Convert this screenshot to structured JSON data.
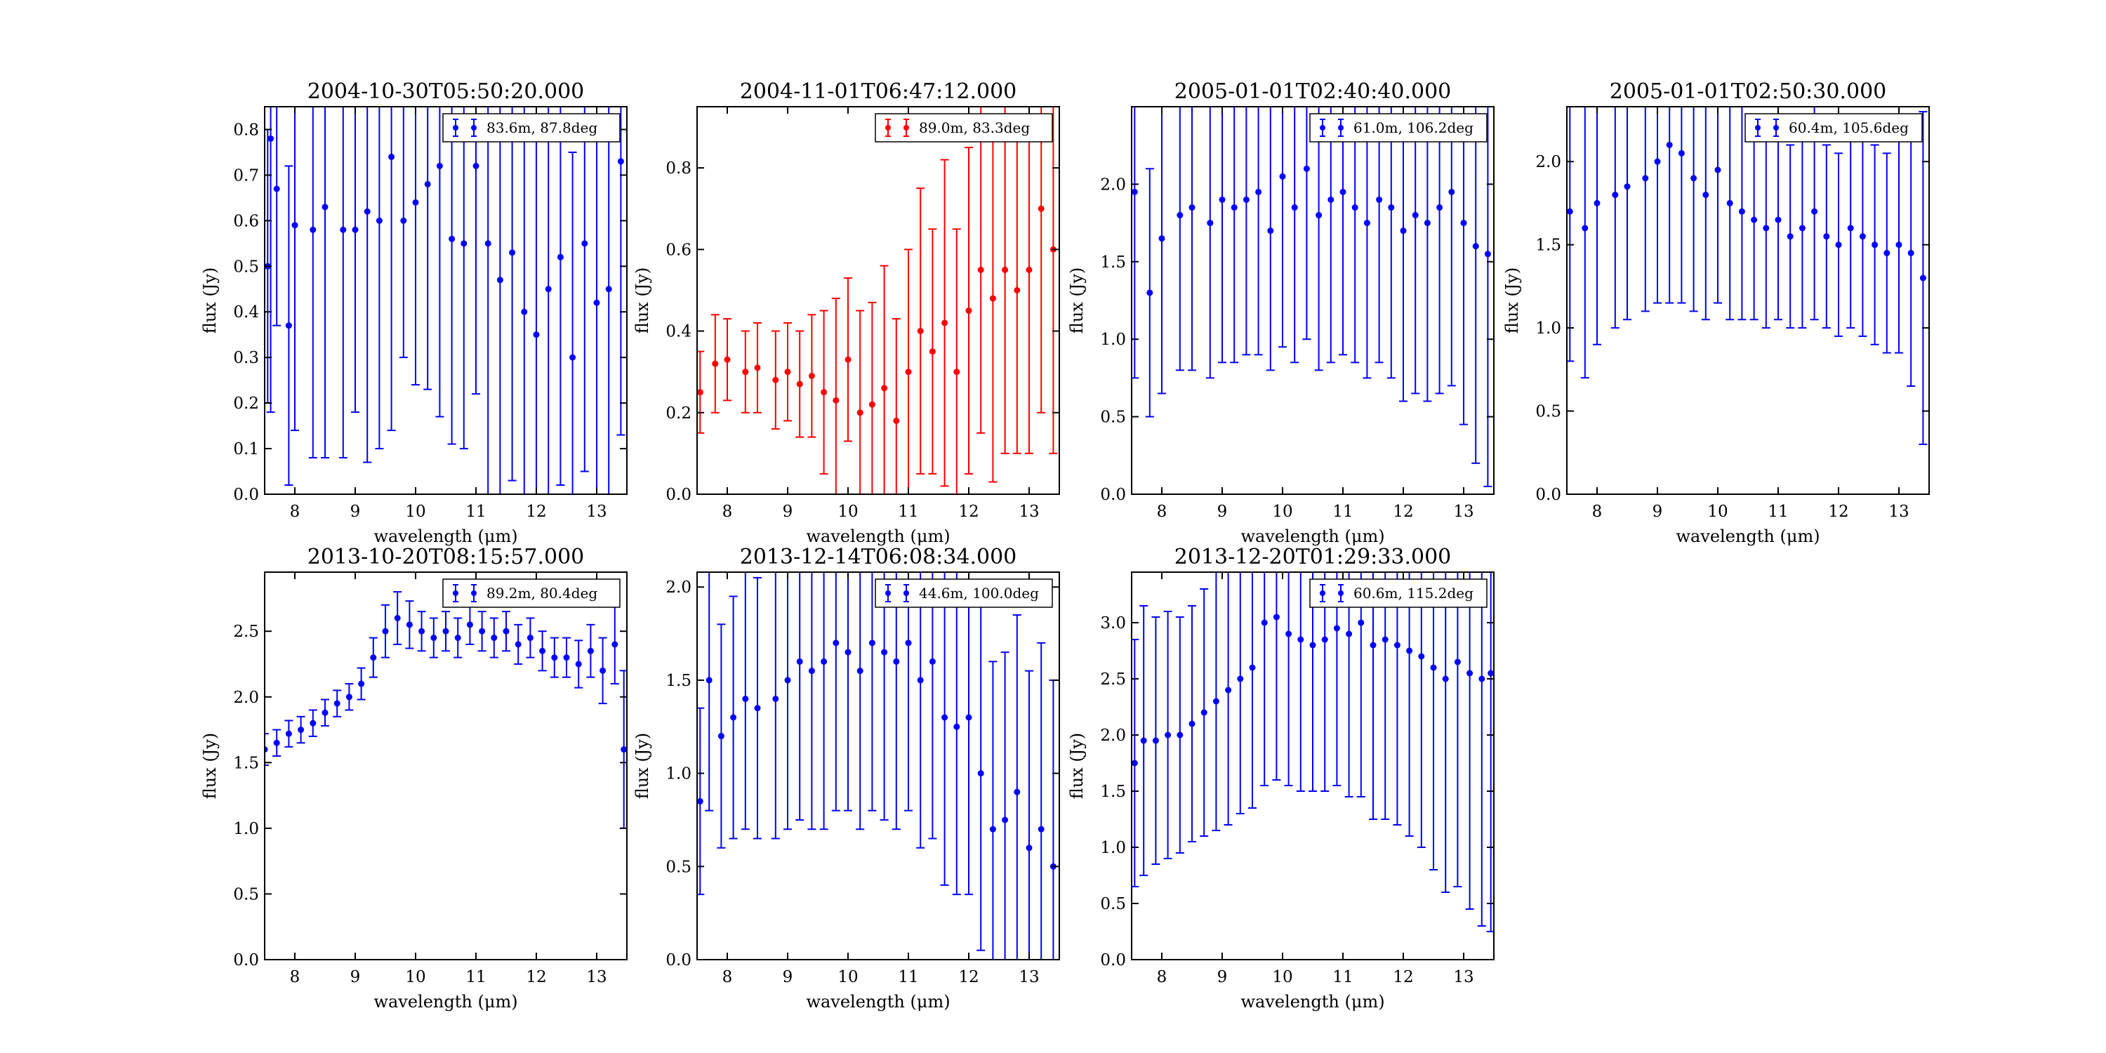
{
  "figure": {
    "background": "#ffffff",
    "colors": {
      "blue": "#0000ff",
      "red": "#ff0000",
      "axes": "#000000"
    }
  },
  "chart_data": [
    {
      "type": "scatter",
      "title": "2004-10-30T05:50:20.000",
      "xlabel": "wavelength (μm)",
      "ylabel": "flux (Jy)",
      "xlim": [
        7.5,
        13.5
      ],
      "ylim": [
        0.0,
        0.85
      ],
      "xticks": [
        "8",
        "9",
        "10",
        "11",
        "12",
        "13"
      ],
      "yticks": [
        "0.0",
        "0.1",
        "0.2",
        "0.3",
        "0.4",
        "0.5",
        "0.6",
        "0.7",
        "0.8"
      ],
      "ytick_values": [
        0,
        0.1,
        0.2,
        0.3,
        0.4,
        0.5,
        0.6,
        0.7,
        0.8
      ],
      "color": "#0000ff",
      "legend": "83.6m, 87.8deg",
      "legend_position": "upper right",
      "x": [
        7.55,
        7.6,
        7.7,
        7.9,
        8.0,
        8.3,
        8.5,
        8.8,
        9.0,
        9.2,
        9.4,
        9.6,
        9.8,
        10.0,
        10.2,
        10.4,
        10.6,
        10.8,
        11.0,
        11.2,
        11.4,
        11.6,
        11.8,
        12.0,
        12.2,
        12.4,
        12.6,
        12.8,
        13.0,
        13.2,
        13.4
      ],
      "y": [
        0.5,
        0.78,
        0.67,
        0.37,
        0.59,
        0.58,
        0.63,
        0.58,
        0.58,
        0.62,
        0.6,
        0.74,
        0.6,
        0.64,
        0.68,
        0.72,
        0.56,
        0.55,
        0.72,
        0.55,
        0.47,
        0.53,
        0.4,
        0.35,
        0.45,
        0.52,
        0.3,
        0.55,
        0.42,
        0.45,
        0.73
      ],
      "yerr": [
        0.3,
        0.6,
        0.3,
        0.35,
        0.45,
        0.5,
        0.55,
        0.5,
        0.4,
        0.55,
        0.5,
        0.6,
        0.3,
        0.4,
        0.45,
        0.55,
        0.45,
        0.45,
        0.5,
        0.55,
        0.5,
        0.5,
        0.55,
        0.5,
        0.5,
        0.5,
        0.45,
        0.5,
        0.45,
        0.5,
        0.6
      ]
    },
    {
      "type": "scatter",
      "title": "2004-11-01T06:47:12.000",
      "xlabel": "wavelength (μm)",
      "ylabel": "flux (Jy)",
      "xlim": [
        7.5,
        13.5
      ],
      "ylim": [
        0.0,
        0.95
      ],
      "xticks": [
        "8",
        "9",
        "10",
        "11",
        "12",
        "13"
      ],
      "yticks": [
        "0.0",
        "0.2",
        "0.4",
        "0.6",
        "0.8"
      ],
      "ytick_values": [
        0,
        0.2,
        0.4,
        0.6,
        0.8
      ],
      "color": "#ff0000",
      "legend": "89.0m, 83.3deg",
      "legend_position": "upper right",
      "x": [
        7.55,
        7.8,
        8.0,
        8.3,
        8.5,
        8.8,
        9.0,
        9.2,
        9.4,
        9.6,
        9.8,
        10.0,
        10.2,
        10.4,
        10.6,
        10.8,
        11.0,
        11.2,
        11.4,
        11.6,
        11.8,
        12.0,
        12.2,
        12.4,
        12.6,
        12.8,
        13.0,
        13.2,
        13.4
      ],
      "y": [
        0.25,
        0.32,
        0.33,
        0.3,
        0.31,
        0.28,
        0.3,
        0.27,
        0.29,
        0.25,
        0.23,
        0.33,
        0.2,
        0.22,
        0.26,
        0.18,
        0.3,
        0.4,
        0.35,
        0.42,
        0.3,
        0.45,
        0.55,
        0.48,
        0.55,
        0.5,
        0.55,
        0.7,
        0.6
      ],
      "yerr": [
        0.1,
        0.12,
        0.1,
        0.1,
        0.11,
        0.12,
        0.12,
        0.13,
        0.15,
        0.2,
        0.25,
        0.2,
        0.25,
        0.25,
        0.3,
        0.25,
        0.3,
        0.35,
        0.3,
        0.4,
        0.35,
        0.4,
        0.4,
        0.45,
        0.45,
        0.4,
        0.45,
        0.5,
        0.5
      ]
    },
    {
      "type": "scatter",
      "title": "2005-01-01T02:40:40.000",
      "xlabel": "wavelength (μm)",
      "ylabel": "flux (Jy)",
      "xlim": [
        7.5,
        13.5
      ],
      "ylim": [
        0.0,
        2.5
      ],
      "xticks": [
        "8",
        "9",
        "10",
        "11",
        "12",
        "13"
      ],
      "yticks": [
        "0.0",
        "0.5",
        "1.0",
        "1.5",
        "2.0"
      ],
      "ytick_values": [
        0,
        0.5,
        1.0,
        1.5,
        2.0
      ],
      "color": "#0000ff",
      "legend": "61.0m, 106.2deg",
      "legend_position": "upper right",
      "x": [
        7.55,
        7.8,
        8.0,
        8.3,
        8.5,
        8.8,
        9.0,
        9.2,
        9.4,
        9.6,
        9.8,
        10.0,
        10.2,
        10.4,
        10.6,
        10.8,
        11.0,
        11.2,
        11.4,
        11.6,
        11.8,
        12.0,
        12.2,
        12.4,
        12.6,
        12.8,
        13.0,
        13.2,
        13.4
      ],
      "y": [
        1.95,
        1.3,
        1.65,
        1.8,
        1.85,
        1.75,
        1.9,
        1.85,
        1.9,
        1.95,
        1.7,
        2.05,
        1.85,
        2.1,
        1.8,
        1.9,
        1.95,
        1.85,
        1.75,
        1.9,
        1.85,
        1.7,
        1.8,
        1.75,
        1.85,
        1.95,
        1.75,
        1.6,
        1.55
      ],
      "yerr": [
        1.2,
        0.8,
        1.0,
        1.0,
        1.05,
        1.0,
        1.05,
        1.0,
        1.0,
        1.05,
        0.9,
        1.1,
        1.0,
        1.1,
        1.0,
        1.05,
        1.05,
        1.0,
        1.0,
        1.05,
        1.1,
        1.1,
        1.15,
        1.15,
        1.2,
        1.25,
        1.3,
        1.4,
        1.5
      ]
    },
    {
      "type": "scatter",
      "title": "2005-01-01T02:50:30.000",
      "xlabel": "wavelength (μm)",
      "ylabel": "flux (Jy)",
      "xlim": [
        7.5,
        13.5
      ],
      "ylim": [
        0.0,
        2.33
      ],
      "xticks": [
        "8",
        "9",
        "10",
        "11",
        "12",
        "13"
      ],
      "yticks": [
        "0.0",
        "0.5",
        "1.0",
        "1.5",
        "2.0"
      ],
      "ytick_values": [
        0,
        0.5,
        1.0,
        1.5,
        2.0
      ],
      "color": "#0000ff",
      "legend": "60.4m, 105.6deg",
      "legend_position": "upper right",
      "x": [
        7.55,
        7.8,
        8.0,
        8.3,
        8.5,
        8.8,
        9.0,
        9.2,
        9.4,
        9.6,
        9.8,
        10.0,
        10.2,
        10.4,
        10.6,
        10.8,
        11.0,
        11.2,
        11.4,
        11.6,
        11.8,
        12.0,
        12.2,
        12.4,
        12.6,
        12.8,
        13.0,
        13.2,
        13.4
      ],
      "y": [
        1.7,
        1.6,
        1.75,
        1.8,
        1.85,
        1.9,
        2.0,
        2.1,
        2.05,
        1.9,
        1.8,
        1.95,
        1.75,
        1.7,
        1.65,
        1.6,
        1.65,
        1.55,
        1.6,
        1.7,
        1.55,
        1.5,
        1.6,
        1.55,
        1.5,
        1.45,
        1.5,
        1.45,
        1.3
      ],
      "yerr": [
        0.9,
        0.9,
        0.85,
        0.8,
        0.8,
        0.8,
        0.85,
        0.95,
        0.9,
        0.8,
        0.75,
        0.8,
        0.7,
        0.65,
        0.6,
        0.6,
        0.6,
        0.55,
        0.6,
        0.65,
        0.55,
        0.55,
        0.6,
        0.6,
        0.6,
        0.6,
        0.65,
        0.8,
        1.0
      ]
    },
    {
      "type": "scatter",
      "title": "2013-10-20T08:15:57.000",
      "xlabel": "wavelength (μm)",
      "ylabel": "flux (Jy)",
      "xlim": [
        7.5,
        13.5
      ],
      "ylim": [
        0.0,
        2.95
      ],
      "xticks": [
        "8",
        "9",
        "10",
        "11",
        "12",
        "13"
      ],
      "yticks": [
        "0.0",
        "0.5",
        "1.0",
        "1.5",
        "2.0",
        "2.5"
      ],
      "ytick_values": [
        0,
        0.5,
        1.0,
        1.5,
        2.0,
        2.5
      ],
      "color": "#0000ff",
      "legend": "89.2m, 80.4deg",
      "legend_position": "upper right",
      "x": [
        7.5,
        7.7,
        7.9,
        8.1,
        8.3,
        8.5,
        8.7,
        8.9,
        9.1,
        9.3,
        9.5,
        9.7,
        9.9,
        10.1,
        10.3,
        10.5,
        10.7,
        10.9,
        11.1,
        11.3,
        11.5,
        11.7,
        11.9,
        12.1,
        12.3,
        12.5,
        12.7,
        12.9,
        13.1,
        13.3,
        13.45
      ],
      "y": [
        1.6,
        1.65,
        1.72,
        1.75,
        1.8,
        1.88,
        1.95,
        2.0,
        2.1,
        2.3,
        2.5,
        2.6,
        2.55,
        2.5,
        2.45,
        2.5,
        2.45,
        2.55,
        2.5,
        2.45,
        2.5,
        2.4,
        2.45,
        2.35,
        2.3,
        2.3,
        2.25,
        2.35,
        2.2,
        2.4,
        1.6
      ],
      "yerr": [
        0.12,
        0.1,
        0.1,
        0.1,
        0.1,
        0.1,
        0.1,
        0.1,
        0.12,
        0.15,
        0.2,
        0.2,
        0.18,
        0.15,
        0.15,
        0.15,
        0.15,
        0.15,
        0.15,
        0.15,
        0.15,
        0.15,
        0.15,
        0.15,
        0.15,
        0.15,
        0.18,
        0.2,
        0.25,
        0.3,
        0.6
      ]
    },
    {
      "type": "scatter",
      "title": "2013-12-14T06:08:34.000",
      "xlabel": "wavelength (μm)",
      "ylabel": "flux (Jy)",
      "xlim": [
        7.5,
        13.5
      ],
      "ylim": [
        0.0,
        2.08
      ],
      "xticks": [
        "8",
        "9",
        "10",
        "11",
        "12",
        "13"
      ],
      "yticks": [
        "0.0",
        "0.5",
        "1.0",
        "1.5",
        "2.0"
      ],
      "ytick_values": [
        0,
        0.5,
        1.0,
        1.5,
        2.0
      ],
      "color": "#0000ff",
      "legend": "44.6m, 100.0deg",
      "legend_position": "upper right",
      "x": [
        7.55,
        7.7,
        7.9,
        8.1,
        8.3,
        8.5,
        8.8,
        9.0,
        9.2,
        9.4,
        9.6,
        9.8,
        10.0,
        10.2,
        10.4,
        10.6,
        10.8,
        11.0,
        11.2,
        11.4,
        11.6,
        11.8,
        12.0,
        12.2,
        12.4,
        12.6,
        12.8,
        13.0,
        13.2,
        13.4
      ],
      "y": [
        0.85,
        1.5,
        1.2,
        1.3,
        1.4,
        1.35,
        1.4,
        1.5,
        1.6,
        1.55,
        1.6,
        1.7,
        1.65,
        1.55,
        1.7,
        1.65,
        1.6,
        1.7,
        1.5,
        1.6,
        1.3,
        1.25,
        1.3,
        1.0,
        0.7,
        0.75,
        0.9,
        0.6,
        0.7,
        0.5
      ],
      "yerr": [
        0.5,
        0.7,
        0.6,
        0.65,
        0.7,
        0.7,
        0.75,
        0.8,
        0.85,
        0.85,
        0.9,
        0.9,
        0.85,
        0.85,
        0.9,
        0.9,
        0.9,
        0.9,
        0.9,
        0.95,
        0.9,
        0.9,
        0.95,
        0.95,
        0.9,
        0.9,
        0.95,
        0.95,
        1.0,
        1.0
      ]
    },
    {
      "type": "scatter",
      "title": "2013-12-20T01:29:33.000",
      "xlabel": "wavelength (μm)",
      "ylabel": "flux (Jy)",
      "xlim": [
        7.5,
        13.5
      ],
      "ylim": [
        0.0,
        3.45
      ],
      "xticks": [
        "8",
        "9",
        "10",
        "11",
        "12",
        "13"
      ],
      "yticks": [
        "0.0",
        "0.5",
        "1.0",
        "1.5",
        "2.0",
        "2.5",
        "3.0"
      ],
      "ytick_values": [
        0,
        0.5,
        1.0,
        1.5,
        2.0,
        2.5,
        3.0
      ],
      "color": "#0000ff",
      "legend": "60.6m, 115.2deg",
      "legend_position": "upper right",
      "x": [
        7.55,
        7.7,
        7.9,
        8.1,
        8.3,
        8.5,
        8.7,
        8.9,
        9.1,
        9.3,
        9.5,
        9.7,
        9.9,
        10.1,
        10.3,
        10.5,
        10.7,
        10.9,
        11.1,
        11.3,
        11.5,
        11.7,
        11.9,
        12.1,
        12.3,
        12.5,
        12.7,
        12.9,
        13.1,
        13.3,
        13.45
      ],
      "y": [
        1.75,
        1.95,
        1.95,
        2.0,
        2.0,
        2.1,
        2.2,
        2.3,
        2.4,
        2.5,
        2.6,
        3.0,
        3.05,
        2.9,
        2.85,
        2.8,
        2.85,
        2.95,
        2.9,
        3.0,
        2.8,
        2.85,
        2.8,
        2.75,
        2.7,
        2.6,
        2.5,
        2.65,
        2.55,
        2.5,
        2.55
      ],
      "yerr": [
        1.1,
        1.2,
        1.1,
        1.1,
        1.05,
        1.05,
        1.1,
        1.15,
        1.2,
        1.2,
        1.25,
        1.45,
        1.45,
        1.35,
        1.35,
        1.3,
        1.35,
        1.4,
        1.45,
        1.55,
        1.55,
        1.6,
        1.6,
        1.65,
        1.7,
        1.8,
        1.9,
        2.0,
        2.1,
        2.2,
        2.3
      ]
    }
  ]
}
